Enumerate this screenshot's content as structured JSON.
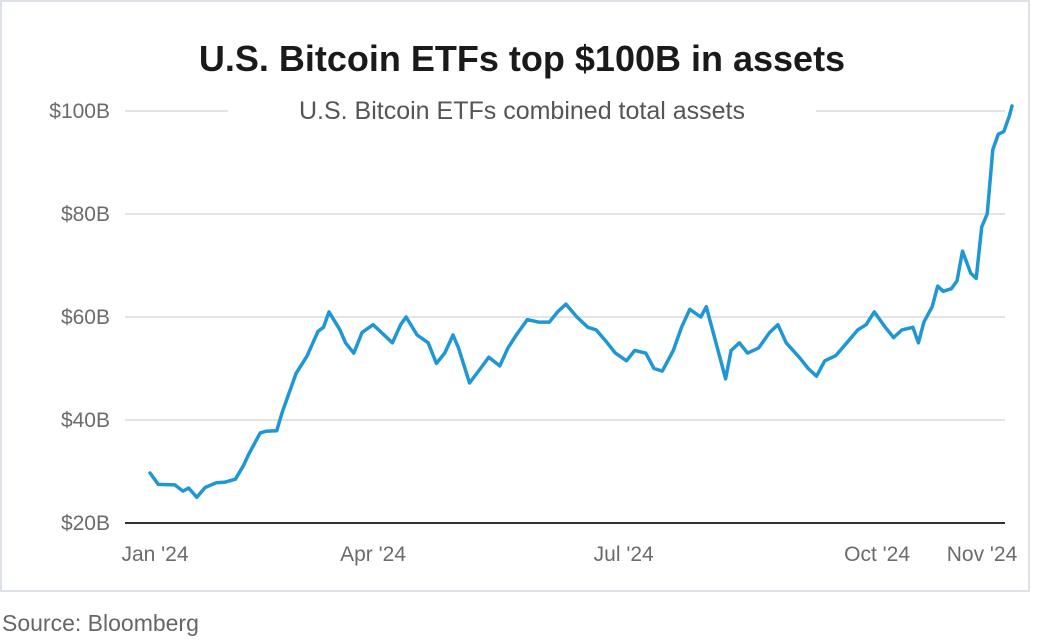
{
  "title": "U.S. Bitcoin ETFs top $100B in assets",
  "source": "Source: Bloomberg",
  "colors": {
    "line": "#1f97d4",
    "grid": "#dcdcdc",
    "axis": "#333333"
  },
  "chart_data": {
    "type": "line",
    "title": "U.S. Bitcoin ETFs top $100B in assets",
    "subtitle": "U.S. Bitcoin ETFs combined total assets",
    "xlabel": "",
    "ylabel": "",
    "ylim": [
      20,
      100
    ],
    "y_ticks": [
      {
        "value": 20,
        "label": "$20B"
      },
      {
        "value": 40,
        "label": "$40B"
      },
      {
        "value": 60,
        "label": "$60B"
      },
      {
        "value": 80,
        "label": "$80B"
      },
      {
        "value": 100,
        "label": "$100B"
      }
    ],
    "x_ticks": [
      {
        "value": "2024-01-11",
        "label": "Jan '24"
      },
      {
        "value": "2024-04-01",
        "label": "Apr '24"
      },
      {
        "value": "2024-07-01",
        "label": "Jul '24"
      },
      {
        "value": "2024-10-01",
        "label": "Oct '24"
      },
      {
        "value": "2024-11-11",
        "label": "Nov '24"
      }
    ],
    "grid": true,
    "series": [
      {
        "name": "",
        "x": [
          "2024-01-11",
          "2024-01-14",
          "2024-01-20",
          "2024-01-23",
          "2024-01-25",
          "2024-01-28",
          "2024-01-31",
          "2024-02-04",
          "2024-02-07",
          "2024-02-11",
          "2024-02-14",
          "2024-02-16",
          "2024-02-20",
          "2024-02-22",
          "2024-02-26",
          "2024-02-28",
          "2024-03-04",
          "2024-03-08",
          "2024-03-12",
          "2024-03-14",
          "2024-03-16",
          "2024-03-20",
          "2024-03-22",
          "2024-03-25",
          "2024-03-28",
          "2024-04-01",
          "2024-04-04",
          "2024-04-08",
          "2024-04-11",
          "2024-04-13",
          "2024-04-17",
          "2024-04-21",
          "2024-04-24",
          "2024-04-27",
          "2024-04-30",
          "2024-05-02",
          "2024-05-06",
          "2024-05-10",
          "2024-05-13",
          "2024-05-17",
          "2024-05-20",
          "2024-05-23",
          "2024-05-27",
          "2024-05-31",
          "2024-06-04",
          "2024-06-07",
          "2024-06-10",
          "2024-06-14",
          "2024-06-18",
          "2024-06-21",
          "2024-06-25",
          "2024-06-28",
          "2024-07-02",
          "2024-07-05",
          "2024-07-09",
          "2024-07-12",
          "2024-07-15",
          "2024-07-19",
          "2024-07-22",
          "2024-07-25",
          "2024-07-29",
          "2024-07-31",
          "2024-08-02",
          "2024-08-05",
          "2024-08-07",
          "2024-08-09",
          "2024-08-12",
          "2024-08-15",
          "2024-08-19",
          "2024-08-23",
          "2024-08-26",
          "2024-08-29",
          "2024-09-03",
          "2024-09-06",
          "2024-09-09",
          "2024-09-12",
          "2024-09-16",
          "2024-09-20",
          "2024-09-24",
          "2024-09-27",
          "2024-09-30",
          "2024-10-02",
          "2024-10-04",
          "2024-10-07",
          "2024-10-10",
          "2024-10-14",
          "2024-10-16",
          "2024-10-18",
          "2024-10-21",
          "2024-10-23",
          "2024-10-25",
          "2024-10-28",
          "2024-10-30",
          "2024-11-01",
          "2024-11-04",
          "2024-11-06",
          "2024-11-08",
          "2024-11-10",
          "2024-11-12",
          "2024-11-14",
          "2024-11-16",
          "2024-11-18",
          "2024-11-19"
        ],
        "values": [
          29.7,
          27.5,
          27.4,
          26.2,
          26.8,
          25.0,
          26.9,
          27.8,
          27.9,
          28.5,
          31.2,
          33.5,
          37.5,
          37.8,
          37.9,
          41.5,
          49.0,
          52.4,
          57.2,
          58.0,
          61.0,
          57.5,
          55.0,
          53.0,
          57.0,
          58.5,
          57.0,
          55.0,
          58.5,
          60.0,
          56.5,
          55.0,
          51.0,
          53.0,
          56.5,
          54.0,
          47.2,
          50.0,
          52.2,
          50.5,
          54.0,
          56.5,
          59.5,
          59.0,
          59.0,
          61.0,
          62.5,
          60.0,
          58.0,
          57.5,
          55.0,
          53.0,
          51.5,
          53.5,
          53.0,
          50.0,
          49.5,
          53.5,
          58.0,
          61.5,
          60.0,
          62.0,
          58.0,
          52.0,
          48.0,
          53.5,
          55.0,
          53.0,
          54.0,
          57.0,
          58.5,
          55.0,
          52.0,
          50.0,
          48.5,
          51.5,
          52.5,
          55.0,
          57.5,
          58.5,
          61.0,
          59.5,
          58.0,
          56.0,
          57.5,
          58.0,
          55.0,
          59.0,
          62.0,
          66.0,
          65.0,
          65.5,
          67.0,
          72.8,
          68.5,
          67.5,
          77.5,
          80.0,
          92.5,
          95.5,
          96.0,
          99.0,
          101.0
        ]
      }
    ]
  }
}
